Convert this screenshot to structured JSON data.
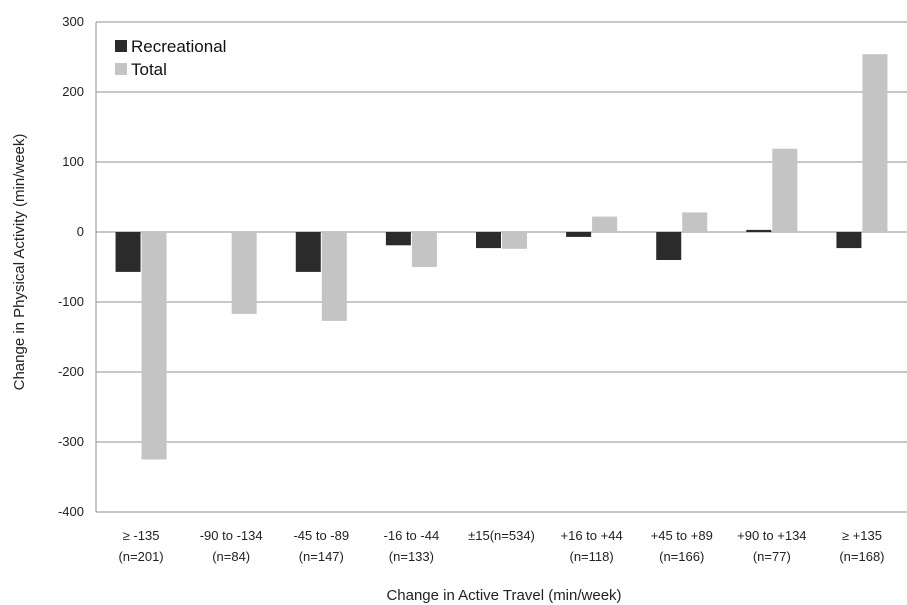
{
  "chart_data": {
    "type": "bar",
    "categories": [
      [
        "≥ -135",
        "(n=201)"
      ],
      [
        "-90 to -134",
        "(n=84)"
      ],
      [
        "-45 to -89",
        "(n=147)"
      ],
      [
        "-16 to -44",
        "(n=133)"
      ],
      [
        "±15(n=534)",
        ""
      ],
      [
        "+16 to +44",
        "(n=118)"
      ],
      [
        "+45 to +89",
        "(n=166)"
      ],
      [
        "+90 to +134",
        "(n=77)"
      ],
      [
        "≥ +135",
        "(n=168)"
      ]
    ],
    "series": [
      {
        "name": "Recreational",
        "color": "#2b2b2b",
        "values": [
          -57,
          0,
          -57,
          -19,
          -23,
          -7,
          -40,
          3,
          -23
        ]
      },
      {
        "name": "Total",
        "color": "#c4c4c4",
        "values": [
          -325,
          -117,
          -127,
          -50,
          -24,
          22,
          28,
          119,
          254
        ]
      }
    ],
    "xlabel": "Change in Active Travel (min/week)",
    "ylabel": "Change in Physical Activity (min/week)",
    "ylim": [
      -400,
      300
    ],
    "yticks": [
      300,
      200,
      100,
      0,
      -100,
      -200,
      -300,
      -400
    ],
    "grid": true,
    "legend": "top-left"
  }
}
